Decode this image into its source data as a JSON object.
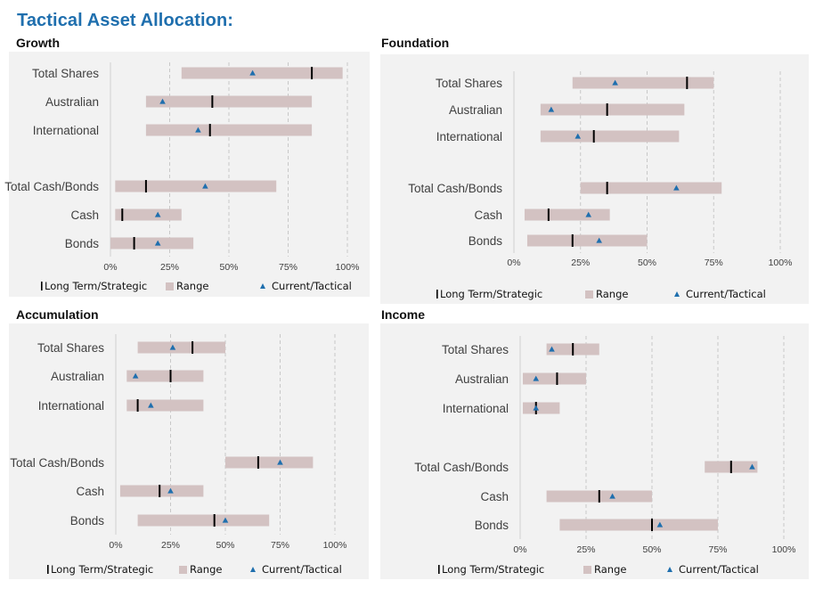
{
  "header": {
    "title": "Tactical Asset Allocation:"
  },
  "legend": {
    "strategic": "Long Term/Strategic",
    "range": "Range",
    "tactical": "Current/Tactical"
  },
  "colors": {
    "title": "#1f6fae",
    "range_bar": "#d3c2c2",
    "strategic_marker": "#000000",
    "tactical_marker": "#1f6fae",
    "panel_bg": "#f2f2f2",
    "gridline": "#c8c8c8"
  },
  "chart_data": [
    {
      "type": "bar",
      "title": "Growth",
      "xlim": [
        0,
        100
      ],
      "xticks": [
        "0%",
        "25%",
        "50%",
        "75%",
        "100%"
      ],
      "categories": [
        "Total Shares",
        "Australian",
        "International",
        "Total Cash/Bonds",
        "Cash",
        "Bonds"
      ],
      "series": [
        {
          "name": "Range",
          "values": [
            [
              30,
              98
            ],
            [
              15,
              85
            ],
            [
              15,
              85
            ],
            [
              2,
              70
            ],
            [
              2,
              30
            ],
            [
              0,
              35
            ]
          ]
        },
        {
          "name": "Long Term/Strategic",
          "values": [
            85,
            43,
            42,
            15,
            5,
            10
          ]
        },
        {
          "name": "Current/Tactical",
          "values": [
            60,
            22,
            37,
            40,
            20,
            20
          ]
        }
      ]
    },
    {
      "type": "bar",
      "title": "Foundation",
      "xlim": [
        0,
        100
      ],
      "xticks": [
        "0%",
        "25%",
        "50%",
        "75%",
        "100%"
      ],
      "categories": [
        "Total Shares",
        "Australian",
        "International",
        "Total Cash/Bonds",
        "Cash",
        "Bonds"
      ],
      "series": [
        {
          "name": "Range",
          "values": [
            [
              22,
              75
            ],
            [
              10,
              64
            ],
            [
              10,
              62
            ],
            [
              25,
              78
            ],
            [
              4,
              36
            ],
            [
              5,
              50
            ]
          ]
        },
        {
          "name": "Long Term/Strategic",
          "values": [
            65,
            35,
            30,
            35,
            13,
            22
          ]
        },
        {
          "name": "Current/Tactical",
          "values": [
            38,
            14,
            24,
            61,
            28,
            32
          ]
        }
      ]
    },
    {
      "type": "bar",
      "title": "Accumulation",
      "xlim": [
        0,
        100
      ],
      "xticks": [
        "0%",
        "25%",
        "50%",
        "75%",
        "100%"
      ],
      "categories": [
        "Total Shares",
        "Australian",
        "International",
        "Total Cash/Bonds",
        "Cash",
        "Bonds"
      ],
      "series": [
        {
          "name": "Range",
          "values": [
            [
              10,
              50
            ],
            [
              5,
              40
            ],
            [
              5,
              40
            ],
            [
              50,
              90
            ],
            [
              2,
              40
            ],
            [
              10,
              70
            ]
          ]
        },
        {
          "name": "Long Term/Strategic",
          "values": [
            35,
            25,
            10,
            65,
            20,
            45
          ]
        },
        {
          "name": "Current/Tactical",
          "values": [
            26,
            9,
            16,
            75,
            25,
            50
          ]
        }
      ]
    },
    {
      "type": "bar",
      "title": "Income",
      "xlim": [
        0,
        100
      ],
      "xticks": [
        "0%",
        "25%",
        "50%",
        "75%",
        "100%"
      ],
      "categories": [
        "Total Shares",
        "Australian",
        "International",
        "Total Cash/Bonds",
        "Cash",
        "Bonds"
      ],
      "series": [
        {
          "name": "Range",
          "values": [
            [
              10,
              30
            ],
            [
              1,
              25
            ],
            [
              1,
              15
            ],
            [
              70,
              90
            ],
            [
              10,
              50
            ],
            [
              15,
              75
            ]
          ]
        },
        {
          "name": "Long Term/Strategic",
          "values": [
            20,
            14,
            6,
            80,
            30,
            50
          ]
        },
        {
          "name": "Current/Tactical",
          "values": [
            12,
            6,
            6,
            88,
            35,
            53
          ]
        }
      ]
    }
  ]
}
